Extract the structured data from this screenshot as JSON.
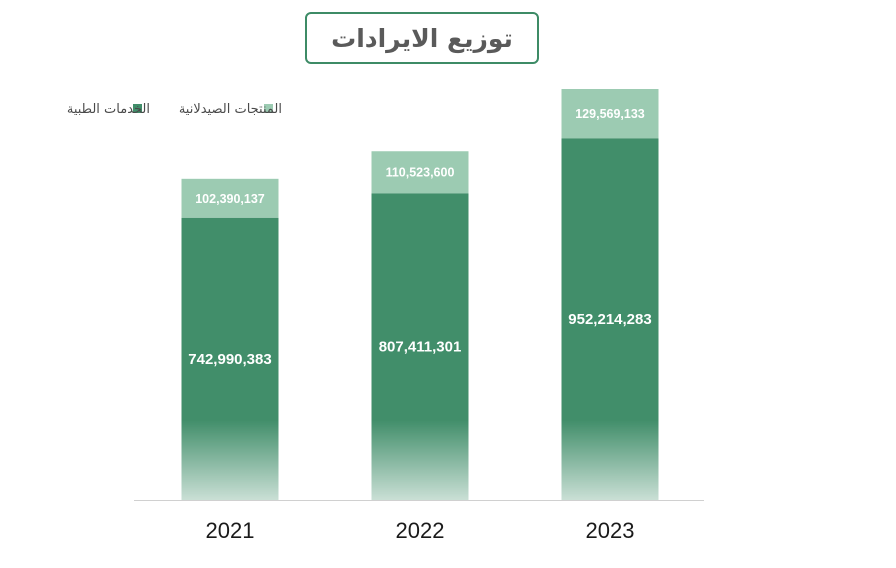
{
  "chart_data": {
    "type": "bar",
    "stacked": true,
    "title": "توزيع الايرادات",
    "categories": [
      "2021",
      "2022",
      "2023"
    ],
    "series": [
      {
        "name": "الخدمات الطبية",
        "values": [
          742990383,
          807411301,
          952214283
        ],
        "labels": [
          "742,990,383",
          "807,411,301",
          "952,214,283"
        ],
        "color": "#418e6a"
      },
      {
        "name": "المنتجات الصيدلانية",
        "values": [
          102390137,
          110523600,
          129569133
        ],
        "labels": [
          "102,390,137",
          "110,523,600",
          "129,569,133"
        ],
        "color": "#9ccbb2"
      }
    ],
    "legend_position": "top-left",
    "grid": false,
    "ylim": [
      0,
      1081783416
    ]
  }
}
